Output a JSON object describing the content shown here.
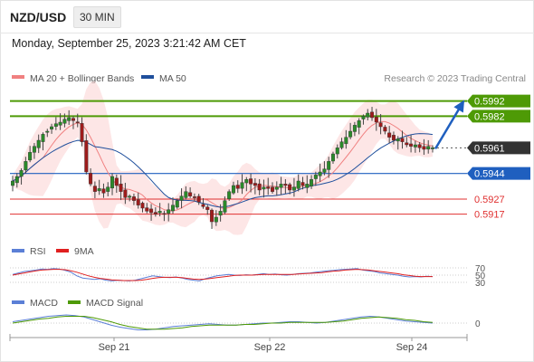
{
  "header": {
    "pair": "NZD/USD",
    "timeframe": "30 MIN"
  },
  "datetime": "Monday, September 25, 2023 3:21:42 AM CET",
  "legend": {
    "ma20": "MA 20 + Bollinger Bands",
    "ma50": "MA 50",
    "credit": "Research © 2023 Trading Central",
    "ma20_color": "#f08080",
    "ma50_color": "#1f4f9c"
  },
  "chart_data": {
    "type": "candlestick",
    "x_tick_labels": [
      "Sep 21",
      "Sep 22",
      "Sep 24"
    ],
    "price_range": [
      0.59,
      0.5999
    ],
    "levels": [
      {
        "value": 0.5992,
        "label": "0.5992",
        "kind": "resistance",
        "color": "#4e9a06"
      },
      {
        "value": 0.5982,
        "label": "0.5982",
        "kind": "resistance",
        "color": "#4e9a06"
      },
      {
        "value": 0.5961,
        "label": "0.5961",
        "kind": "last",
        "color": "#333333"
      },
      {
        "value": 0.5944,
        "label": "0.5944",
        "kind": "pivot",
        "color": "#1f5fbf"
      },
      {
        "value": 0.5927,
        "label": "0.5927",
        "kind": "support",
        "color": "#e03030"
      },
      {
        "value": 0.5917,
        "label": "0.5917",
        "kind": "support",
        "color": "#e03030"
      }
    ],
    "close_path": [
      0.5939,
      0.5942,
      0.5946,
      0.5952,
      0.5958,
      0.5962,
      0.5966,
      0.597,
      0.5972,
      0.5975,
      0.5977,
      0.5978,
      0.598,
      0.5981,
      0.5979,
      0.5978,
      0.5965,
      0.5945,
      0.5937,
      0.5932,
      0.5934,
      0.5931,
      0.5935,
      0.5942,
      0.5936,
      0.5932,
      0.5928,
      0.5929,
      0.5926,
      0.5923,
      0.5921,
      0.5919,
      0.5918,
      0.5917,
      0.5919,
      0.5917,
      0.592,
      0.5923,
      0.5926,
      0.5929,
      0.5932,
      0.5929,
      0.5928,
      0.5925,
      0.5922,
      0.592,
      0.5912,
      0.5915,
      0.5919,
      0.5926,
      0.5932,
      0.5936,
      0.5934,
      0.5938,
      0.594,
      0.5937,
      0.5936,
      0.5933,
      0.5935,
      0.5934,
      0.5932,
      0.5935,
      0.5937,
      0.5936,
      0.5933,
      0.5935,
      0.5939,
      0.5936,
      0.5937,
      0.594,
      0.5943,
      0.5945,
      0.5947,
      0.5952,
      0.5957,
      0.5961,
      0.5965,
      0.5968,
      0.5972,
      0.5976,
      0.5979,
      0.5982,
      0.5984,
      0.5981,
      0.5978,
      0.5975,
      0.5972,
      0.5968,
      0.5966,
      0.5967,
      0.5965,
      0.5963,
      0.5962,
      0.5963,
      0.5961,
      0.596,
      0.5962,
      0.5961
    ],
    "forecast_arrow": {
      "from": 0.5961,
      "to": 0.5992
    },
    "rsi": {
      "label": "RSI",
      "ma_label": "9MA",
      "ticks": [
        70,
        50,
        30
      ],
      "color": "#5b7fd6",
      "ma_color": "#e02020",
      "values": [
        52,
        56,
        60,
        62,
        64,
        67,
        66,
        68,
        67,
        63,
        58,
        48,
        42,
        40,
        38,
        40,
        36,
        34,
        36,
        35,
        34,
        36,
        40,
        44,
        48,
        46,
        44,
        43,
        45,
        42,
        38,
        36,
        34,
        40,
        44,
        48,
        50,
        52,
        50,
        49,
        51,
        50,
        52,
        54,
        52,
        53,
        51,
        50,
        52,
        54,
        55,
        56,
        58,
        60,
        62,
        63,
        65,
        66,
        67,
        68,
        64,
        62,
        60,
        56,
        54,
        52,
        50,
        47,
        45,
        46,
        45,
        47,
        46
      ],
      "ma_values": [
        50,
        53,
        56,
        59,
        62,
        64,
        65,
        66,
        66,
        65,
        62,
        58,
        53,
        48,
        44,
        41,
        39,
        37,
        36,
        35,
        35,
        35,
        36,
        38,
        41,
        43,
        44,
        44,
        44,
        43,
        41,
        39,
        38,
        39,
        41,
        43,
        45,
        47,
        49,
        50,
        50,
        50,
        51,
        52,
        52,
        52,
        52,
        52,
        52,
        53,
        54,
        55,
        56,
        57,
        59,
        61,
        62,
        64,
        65,
        66,
        65,
        64,
        62,
        60,
        58,
        56,
        54,
        51,
        49,
        47,
        46,
        46,
        46
      ]
    },
    "macd": {
      "label": "MACD",
      "signal_label": "MACD Signal",
      "ticks": [
        0
      ],
      "color": "#5b7fd6",
      "signal_color": "#4e9a06",
      "values": [
        0.0002,
        0.0004,
        0.0006,
        0.0008,
        0.001,
        0.0011,
        0.0012,
        0.0011,
        0.0009,
        0.0005,
        0.0001,
        -0.0003,
        -0.0006,
        -0.0008,
        -0.001,
        -0.001,
        -0.0009,
        -0.0007,
        -0.0005,
        -0.0004,
        -0.0003,
        -0.0002,
        -0.0001,
        -0.0002,
        -0.0003,
        -0.0003,
        -0.0002,
        -0.0001,
        0.0,
        0.0,
        0.0001,
        0.0002,
        0.0002,
        0.0001,
        0.0,
        0.0001,
        0.0003,
        0.0005,
        0.0007,
        0.0009,
        0.001,
        0.0009,
        0.0007,
        0.0005,
        0.0003,
        0.0002,
        0.0001,
        0.0
      ],
      "signal_values": [
        0.0,
        0.0002,
        0.0004,
        0.0006,
        0.0007,
        0.0009,
        0.001,
        0.001,
        0.001,
        0.0008,
        0.0005,
        0.0002,
        -0.0002,
        -0.0005,
        -0.0007,
        -0.0009,
        -0.0009,
        -0.0009,
        -0.0008,
        -0.0007,
        -0.0005,
        -0.0004,
        -0.0003,
        -0.0003,
        -0.0003,
        -0.0003,
        -0.0002,
        -0.0002,
        -0.0001,
        0.0,
        0.0,
        0.0001,
        0.0001,
        0.0001,
        0.0001,
        0.0001,
        0.0002,
        0.0003,
        0.0005,
        0.0007,
        0.0008,
        0.0009,
        0.0008,
        0.0007,
        0.0005,
        0.0004,
        0.0002,
        0.0001
      ]
    }
  }
}
